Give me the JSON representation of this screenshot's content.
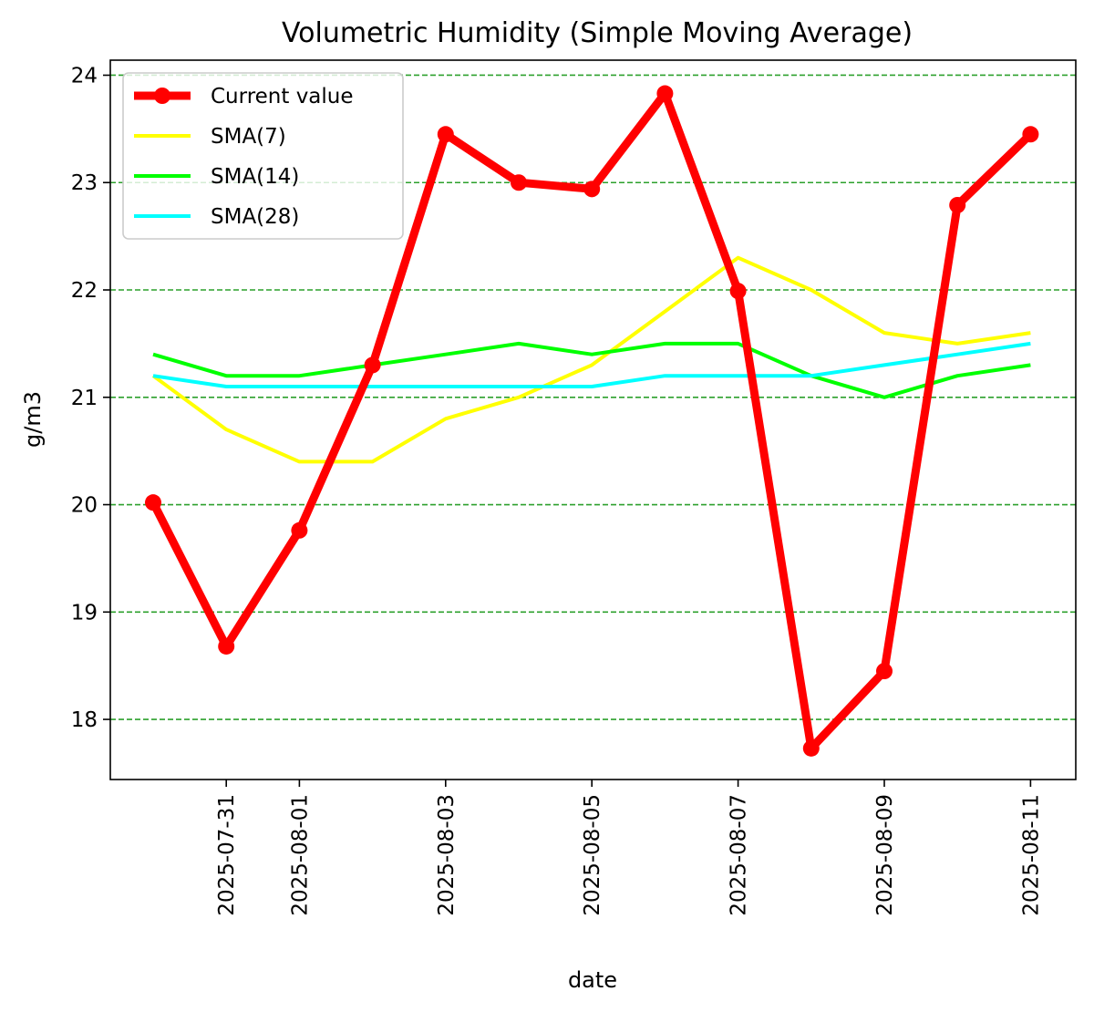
{
  "chart_data": {
    "type": "line",
    "title": "Volumetric Humidity (Simple Moving Average)",
    "xlabel": "date",
    "ylabel": "g/m3",
    "x": [
      "2025-07-30",
      "2025-07-31",
      "2025-08-01",
      "2025-08-02",
      "2025-08-03",
      "2025-08-04",
      "2025-08-05",
      "2025-08-06",
      "2025-08-07",
      "2025-08-08",
      "2025-08-09",
      "2025-08-10",
      "2025-08-11"
    ],
    "xticks": [
      "2025-07-31",
      "2025-08-01",
      "2025-08-03",
      "2025-08-05",
      "2025-08-07",
      "2025-08-09",
      "2025-08-11"
    ],
    "yticks": [
      18,
      19,
      20,
      21,
      22,
      23,
      24
    ],
    "ylim": [
      17.44,
      24.14
    ],
    "grid": "horizontal, dashed",
    "grid_color": "#2ca02c",
    "legend_position": "upper-left",
    "series": [
      {
        "name": "Current value",
        "color": "#ff0000",
        "marker": "circle",
        "values": [
          20.02,
          18.68,
          19.76,
          21.3,
          23.45,
          23.0,
          22.94,
          23.83,
          21.99,
          17.73,
          18.45,
          22.79,
          23.45
        ]
      },
      {
        "name": "SMA(7)",
        "color": "#ffff00",
        "values": [
          21.2,
          20.7,
          20.4,
          20.4,
          20.8,
          21.0,
          21.3,
          21.8,
          22.3,
          22.0,
          21.6,
          21.5,
          21.6
        ]
      },
      {
        "name": "SMA(14)",
        "color": "#00ff00",
        "values": [
          21.4,
          21.2,
          21.2,
          21.3,
          21.4,
          21.5,
          21.4,
          21.5,
          21.5,
          21.2,
          21.0,
          21.2,
          21.3
        ]
      },
      {
        "name": "SMA(28)",
        "color": "#00ffff",
        "values": [
          21.2,
          21.1,
          21.1,
          21.1,
          21.1,
          21.1,
          21.1,
          21.2,
          21.2,
          21.2,
          21.3,
          21.4,
          21.5
        ]
      }
    ]
  }
}
